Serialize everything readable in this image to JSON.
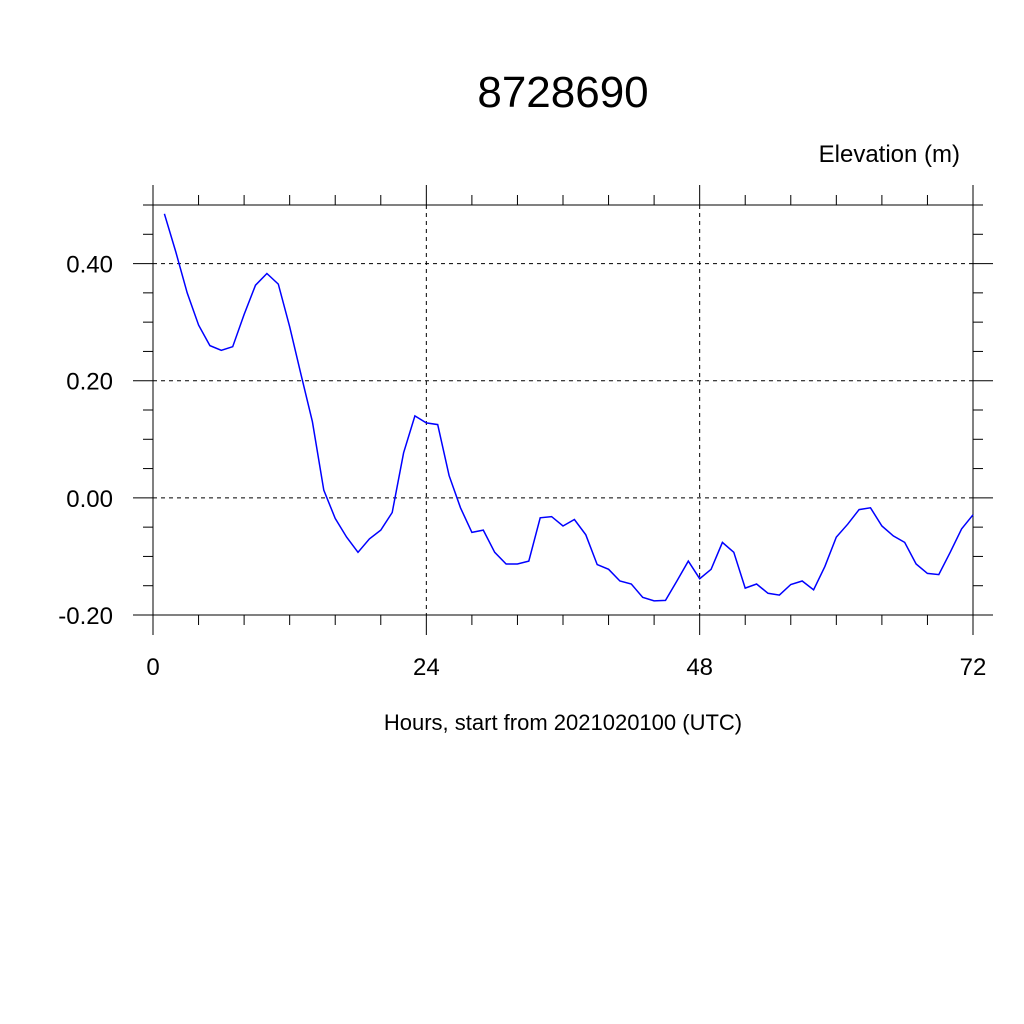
{
  "chart_data": {
    "type": "line",
    "title": "8728690",
    "unit_label": "Elevation (m)",
    "xlabel": "Hours, start from 2021020100 (UTC)",
    "ylabel": "",
    "xlim": [
      0,
      72
    ],
    "ylim": [
      -0.2,
      0.5
    ],
    "x_ticks": [
      0,
      24,
      48,
      72
    ],
    "x_tick_labels": [
      "0",
      "24",
      "48",
      "72"
    ],
    "y_ticks": [
      -0.2,
      0.0,
      0.2,
      0.4
    ],
    "y_tick_labels": [
      "-0.20",
      "0.00",
      "0.20",
      "0.40"
    ],
    "grid": true,
    "series": [
      {
        "color": "#0000ff",
        "x": [
          1,
          2,
          3,
          4,
          5,
          6,
          7,
          8,
          9,
          10,
          11,
          12,
          13,
          14,
          15,
          16,
          17,
          18,
          19,
          20,
          21,
          22,
          23,
          24,
          25,
          26,
          27,
          28,
          29,
          30,
          31,
          32,
          33,
          34,
          35,
          36,
          37,
          38,
          39,
          40,
          41,
          42,
          43,
          44,
          45,
          46,
          47,
          48,
          49,
          50,
          51,
          52,
          53,
          54,
          55,
          56,
          57,
          58,
          59,
          60,
          61,
          62,
          63,
          64,
          65,
          66,
          67,
          68,
          69,
          70,
          71,
          72
        ],
        "values": [
          0.485,
          0.42,
          0.35,
          0.295,
          0.26,
          0.252,
          0.258,
          0.313,
          0.363,
          0.383,
          0.365,
          0.292,
          0.21,
          0.13,
          0.013,
          -0.035,
          -0.067,
          -0.093,
          -0.07,
          -0.055,
          -0.025,
          0.077,
          0.14,
          0.128,
          0.125,
          0.038,
          -0.017,
          -0.059,
          -0.055,
          -0.093,
          -0.113,
          -0.113,
          -0.108,
          -0.034,
          -0.032,
          -0.048,
          -0.037,
          -0.063,
          -0.114,
          -0.122,
          -0.142,
          -0.147,
          -0.17,
          -0.176,
          -0.175,
          -0.142,
          -0.108,
          -0.138,
          -0.122,
          -0.076,
          -0.093,
          -0.154,
          -0.147,
          -0.163,
          -0.166,
          -0.148,
          -0.142,
          -0.157,
          -0.117,
          -0.067,
          -0.045,
          -0.02,
          -0.017,
          -0.048,
          -0.065,
          -0.076,
          -0.113,
          -0.129,
          -0.131,
          -0.093,
          -0.053,
          -0.029
        ]
      }
    ]
  }
}
